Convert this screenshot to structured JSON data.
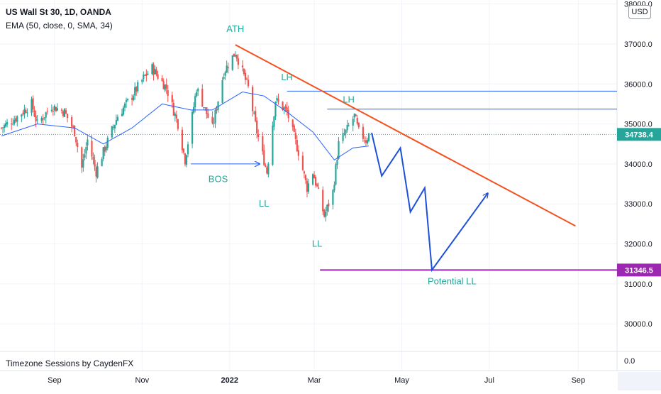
{
  "legend": {
    "title": "US Wall St 30, 1D, OANDA",
    "ema": "EMA (50, close, 0, SMA, 34)"
  },
  "currency": "USD",
  "indicator_label": "Timezone Sessions by CaydenFX",
  "current_price_label": "34738.4",
  "target_price_label": "31346.5",
  "pane_zero_label": "0.0",
  "colors": {
    "up": "#26a69a",
    "down": "#ef5350",
    "ema": "#2962ff",
    "trendline": "#f4511e",
    "resistance": "#2962ff",
    "path": "#1e4fd8",
    "target": "#9c27b0",
    "annotation": "#26a69a",
    "price_tag": "#26a69a",
    "target_tag": "#9c27b0"
  },
  "chart_data": {
    "type": "candlestick",
    "y_ticks": [
      "38000.0",
      "37000.0",
      "36000.0",
      "35000.0",
      "34000.0",
      "33000.0",
      "32000.0",
      "31000.0",
      "30000.0"
    ],
    "y_tick_values": [
      38000,
      37000,
      36000,
      35000,
      34000,
      33000,
      32000,
      31000,
      30000
    ],
    "ylim": [
      29400,
      38100
    ],
    "x_ticks": [
      "Sep",
      "Nov",
      "2022",
      "Mar",
      "May",
      "Jul",
      "Sep"
    ],
    "x_tick_dates": [
      "2021-09-01",
      "2021-11-01",
      "2022-01-01",
      "2022-03-01",
      "2022-05-01",
      "2022-07-01",
      "2022-09-01"
    ],
    "xlim": [
      "2021-07-25",
      "2022-09-28"
    ],
    "price_path": [
      [
        "2021-07-26",
        34900
      ],
      [
        "2021-08-05",
        35150
      ],
      [
        "2021-08-16",
        35500
      ],
      [
        "2021-08-20",
        35000
      ],
      [
        "2021-08-30",
        35450
      ],
      [
        "2021-09-08",
        35300
      ],
      [
        "2021-09-15",
        34800
      ],
      [
        "2021-09-20",
        33900
      ],
      [
        "2021-09-24",
        34600
      ],
      [
        "2021-09-30",
        33800
      ],
      [
        "2021-10-05",
        34300
      ],
      [
        "2021-10-15",
        35200
      ],
      [
        "2021-10-25",
        35700
      ],
      [
        "2021-11-02",
        36150
      ],
      [
        "2021-11-08",
        36400
      ],
      [
        "2021-11-18",
        35900
      ],
      [
        "2021-11-26",
        35000
      ],
      [
        "2021-12-01",
        34100
      ],
      [
        "2021-12-06",
        35200
      ],
      [
        "2021-12-09",
        35900
      ],
      [
        "2021-12-20",
        34900
      ],
      [
        "2021-12-28",
        36300
      ],
      [
        "2022-01-05",
        36800
      ],
      [
        "2022-01-14",
        35900
      ],
      [
        "2022-01-20",
        34800
      ],
      [
        "2022-01-27",
        33800
      ],
      [
        "2022-02-02",
        35600
      ],
      [
        "2022-02-10",
        35300
      ],
      [
        "2022-02-18",
        34300
      ],
      [
        "2022-02-24",
        33400
      ],
      [
        "2022-02-28",
        33800
      ],
      [
        "2022-03-03",
        33400
      ],
      [
        "2022-03-08",
        32700
      ],
      [
        "2022-03-14",
        33300
      ],
      [
        "2022-03-18",
        34500
      ],
      [
        "2022-03-23",
        34800
      ],
      [
        "2022-03-29",
        35200
      ],
      [
        "2022-04-01",
        34800
      ],
      [
        "2022-04-06",
        34600
      ],
      [
        "2022-04-08",
        34738
      ]
    ],
    "ema_path": [
      [
        "2021-07-26",
        34700
      ],
      [
        "2021-08-20",
        35000
      ],
      [
        "2021-09-15",
        34900
      ],
      [
        "2021-10-05",
        34500
      ],
      [
        "2021-10-25",
        34900
      ],
      [
        "2021-11-15",
        35500
      ],
      [
        "2021-12-05",
        35350
      ],
      [
        "2021-12-20",
        35350
      ],
      [
        "2022-01-10",
        35800
      ],
      [
        "2022-01-25",
        35700
      ],
      [
        "2022-02-10",
        35300
      ],
      [
        "2022-02-28",
        34800
      ],
      [
        "2022-03-15",
        34100
      ],
      [
        "2022-03-28",
        34400
      ],
      [
        "2022-04-08",
        34450
      ]
    ],
    "current_price": 34738.4,
    "target_level": 31346.5,
    "downtrend_line": [
      [
        "2022-01-05",
        36980
      ],
      [
        "2022-08-30",
        32450
      ]
    ],
    "resistance_levels": [
      {
        "from": "2022-02-10",
        "value": 35820
      },
      {
        "from": "2022-03-10",
        "value": 35370
      }
    ],
    "projection_path": [
      [
        "2022-04-10",
        34780
      ],
      [
        "2022-04-17",
        33700
      ],
      [
        "2022-04-30",
        34400
      ],
      [
        "2022-05-07",
        32800
      ],
      [
        "2022-05-17",
        33400
      ],
      [
        "2022-05-22",
        31346.5
      ],
      [
        "2022-06-30",
        33270
      ]
    ],
    "bos_arrow": [
      [
        "2021-12-05",
        34000
      ],
      [
        "2022-01-22",
        34000
      ]
    ],
    "annotations": [
      {
        "text": "ATH",
        "date": "2022-01-05",
        "value": 37300
      },
      {
        "text": "LH",
        "date": "2022-02-10",
        "value": 36090
      },
      {
        "text": "LH",
        "date": "2022-03-25",
        "value": 35530
      },
      {
        "text": "BOS",
        "date": "2021-12-24",
        "value": 33550
      },
      {
        "text": "LL",
        "date": "2022-01-25",
        "value": 32930
      },
      {
        "text": "LL",
        "date": "2022-03-03",
        "value": 31930
      },
      {
        "text": "Potential LL",
        "date": "2022-06-05",
        "value": 30990
      }
    ],
    "grid": true
  }
}
